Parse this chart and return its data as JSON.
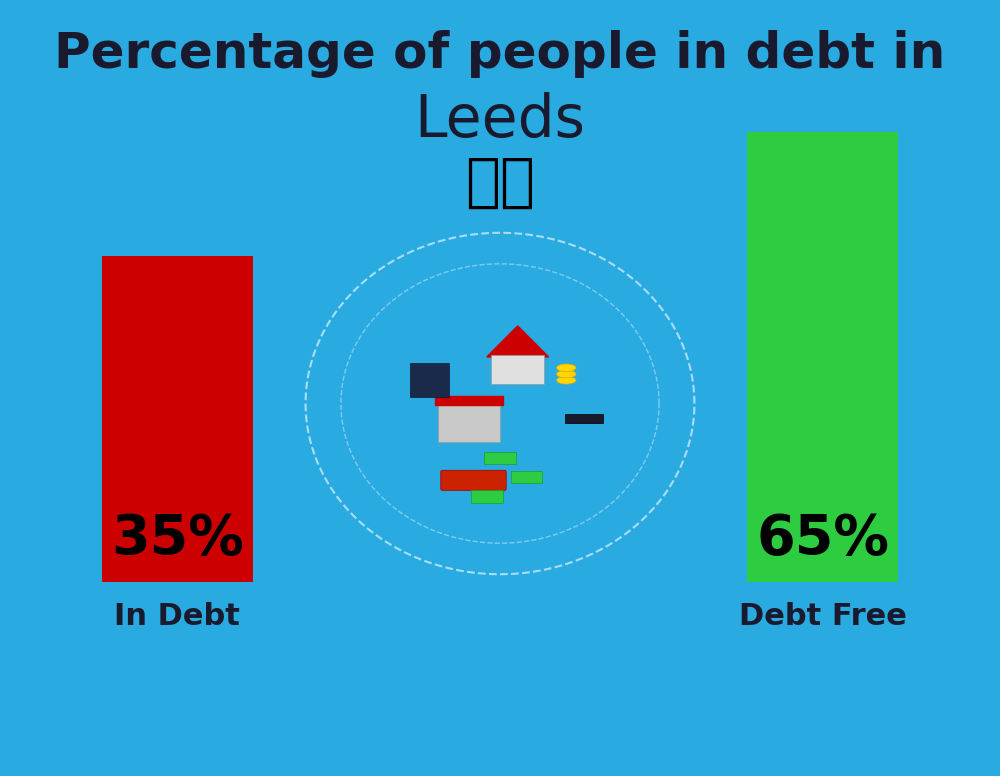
{
  "title_line1": "Percentage of people in debt in",
  "title_line2": "Leeds",
  "flag_emoji": "🇬🇧",
  "background_color": "#29ABE2",
  "bar1_value": 35,
  "bar1_label": "In Debt",
  "bar1_color": "#CC0000",
  "bar1_text": "35%",
  "bar2_value": 65,
  "bar2_label": "Debt Free",
  "bar2_color": "#2ECC40",
  "bar2_text": "65%",
  "title_color": "#1a1a2e",
  "label_color": "#1a1a2e",
  "pct_color": "#000000",
  "title_fontsize": 36,
  "leeds_fontsize": 42,
  "pct_fontsize": 40,
  "label_fontsize": 22
}
